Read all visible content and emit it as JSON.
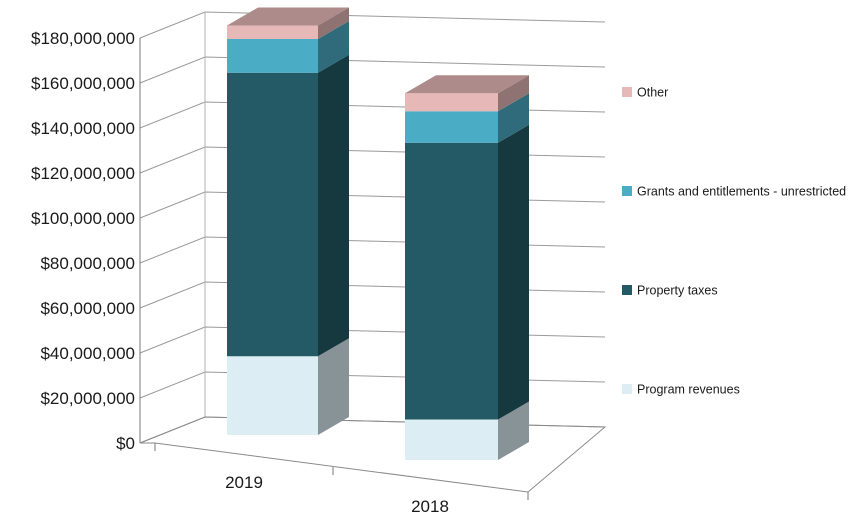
{
  "chart_data": {
    "type": "bar",
    "stacked": true,
    "three_d": true,
    "categories": [
      "2019",
      "2018"
    ],
    "series": [
      {
        "name": "Program revenues",
        "values": [
          35000000,
          18000000
        ],
        "color": "#dcedf4"
      },
      {
        "name": "Property taxes",
        "values": [
          126000000,
          123000000
        ],
        "color": "#245a66"
      },
      {
        "name": "Grants and entitlements - unrestricted",
        "values": [
          15000000,
          14000000
        ],
        "color": "#4bacc6"
      },
      {
        "name": "Other",
        "values": [
          6000000,
          8000000
        ],
        "color": "#e6b9b8"
      }
    ],
    "ylim": [
      0,
      180000000
    ],
    "y_ticks": [
      "$0",
      "$20,000,000",
      "$40,000,000",
      "$60,000,000",
      "$80,000,000",
      "$100,000,000",
      "$120,000,000",
      "$140,000,000",
      "$160,000,000",
      "$180,000,000"
    ],
    "grid": true,
    "legend_position": "right",
    "legend_order": [
      "Other",
      "Grants and entitlements - unrestricted",
      "Property taxes",
      "Program revenues"
    ],
    "title": "",
    "xlabel": "",
    "ylabel": ""
  }
}
